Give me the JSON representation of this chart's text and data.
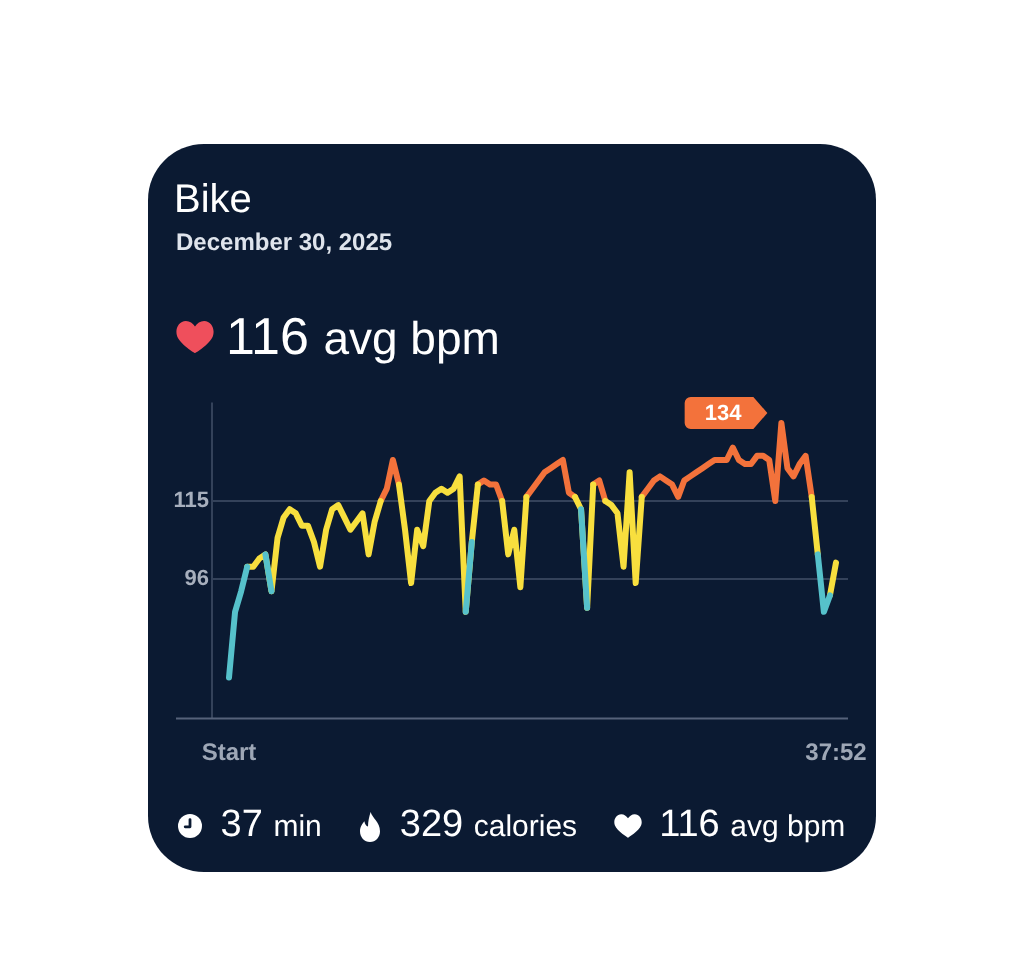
{
  "chart_data": {
    "type": "line",
    "title": "Bike",
    "subtitle": "December 30, 2025",
    "annotations": [
      "116 avg bpm",
      "37 min",
      "329 calories",
      "116 avg bpm"
    ],
    "categories": [
      "Start",
      null,
      null,
      null,
      null,
      null,
      null,
      null,
      null,
      null,
      null,
      null,
      null,
      null,
      null,
      null,
      null,
      null,
      null,
      null,
      null,
      null,
      null,
      null,
      null,
      null,
      null,
      null,
      null,
      null,
      null,
      null,
      null,
      null,
      null,
      null,
      null,
      null,
      null,
      null,
      null,
      null,
      null,
      null,
      null,
      null,
      null,
      null,
      null,
      null,
      null,
      null,
      null,
      null,
      null,
      null,
      null,
      null,
      null,
      null,
      null,
      null,
      null,
      null,
      null,
      null,
      null,
      null,
      null,
      null,
      null,
      null,
      null,
      null,
      null,
      null,
      null,
      null,
      null,
      null,
      null,
      null,
      null,
      null,
      null,
      null,
      null,
      null,
      null,
      null,
      null,
      null,
      null,
      null,
      null,
      null,
      null,
      null,
      null,
      null,
      "37:52"
    ],
    "ylim": [
      62,
      139
    ],
    "yticks": [
      96,
      115
    ],
    "grid": "y",
    "series": [
      {
        "color": "#56c1cb",
        "values": [
          72,
          88,
          93,
          99,
          null,
          null,
          102,
          93,
          null,
          null,
          null,
          null,
          null,
          null,
          null,
          null,
          null,
          null,
          null,
          null,
          null,
          null,
          null,
          null,
          null,
          null,
          null,
          null,
          null,
          null,
          null,
          null,
          null,
          null,
          null,
          null,
          null,
          null,
          null,
          88,
          105,
          null,
          null,
          null,
          null,
          null,
          null,
          null,
          null,
          null,
          null,
          null,
          null,
          null,
          null,
          null,
          null,
          null,
          113,
          89,
          null,
          null,
          null,
          null,
          null,
          null,
          null,
          null,
          null,
          null,
          null,
          null,
          null,
          null,
          null,
          null,
          null,
          null,
          null,
          null,
          null,
          null,
          null,
          null,
          null,
          null,
          null,
          null,
          null,
          null,
          null,
          null,
          null,
          null,
          null,
          null,
          null,
          102,
          88,
          92,
          null
        ]
      },
      {
        "color": "#f8df3e",
        "values": [
          null,
          null,
          null,
          99,
          99,
          101,
          102,
          93,
          106,
          111,
          113,
          112,
          109,
          109,
          105,
          99,
          108,
          113,
          114,
          111,
          108,
          110,
          112,
          102,
          110,
          115,
          null,
          null,
          119,
          108,
          95,
          108,
          104,
          115,
          117,
          118,
          117,
          118,
          121,
          88,
          105,
          119,
          null,
          null,
          null,
          115,
          102,
          108,
          94,
          116,
          null,
          null,
          null,
          null,
          null,
          null,
          null,
          116,
          113,
          89,
          119,
          null,
          115,
          114,
          112,
          99,
          122,
          95,
          116,
          null,
          null,
          null,
          null,
          null,
          null,
          null,
          null,
          null,
          null,
          null,
          null,
          null,
          null,
          null,
          null,
          null,
          null,
          null,
          null,
          null,
          null,
          null,
          null,
          null,
          null,
          null,
          116,
          102,
          null,
          92,
          100
        ]
      },
      {
        "color": "#f3723b",
        "values": [
          null,
          null,
          null,
          null,
          null,
          null,
          null,
          null,
          null,
          null,
          null,
          null,
          null,
          null,
          null,
          null,
          null,
          null,
          null,
          null,
          null,
          null,
          null,
          null,
          null,
          115,
          118,
          125,
          119,
          null,
          null,
          null,
          null,
          null,
          null,
          null,
          null,
          null,
          null,
          null,
          null,
          119,
          120,
          119,
          119,
          115,
          null,
          null,
          null,
          116,
          118,
          120,
          122,
          123,
          124,
          125,
          117,
          116,
          null,
          null,
          119,
          120,
          115,
          null,
          null,
          null,
          null,
          null,
          116,
          118,
          120,
          121,
          120,
          119,
          116,
          120,
          121,
          122,
          123,
          124,
          125,
          125,
          125,
          128,
          125,
          124,
          124,
          126,
          126,
          125,
          115,
          134,
          123,
          121,
          124,
          126,
          116,
          null,
          null,
          null,
          null
        ],
        "value_labels": [
          null,
          null,
          null,
          null,
          null,
          null,
          null,
          null,
          null,
          null,
          null,
          null,
          null,
          null,
          null,
          null,
          null,
          null,
          null,
          null,
          null,
          null,
          null,
          null,
          null,
          null,
          null,
          null,
          null,
          null,
          null,
          null,
          null,
          null,
          null,
          null,
          null,
          null,
          null,
          null,
          null,
          null,
          null,
          null,
          null,
          null,
          null,
          null,
          null,
          null,
          null,
          null,
          null,
          null,
          null,
          null,
          null,
          null,
          null,
          null,
          null,
          null,
          null,
          null,
          null,
          null,
          null,
          null,
          null,
          null,
          null,
          null,
          null,
          null,
          null,
          null,
          null,
          null,
          null,
          null,
          null,
          null,
          null,
          null,
          null,
          null,
          null,
          null,
          null,
          null,
          null,
          "134",
          null,
          null,
          null,
          null,
          null,
          null,
          null,
          null,
          null
        ]
      }
    ]
  }
}
